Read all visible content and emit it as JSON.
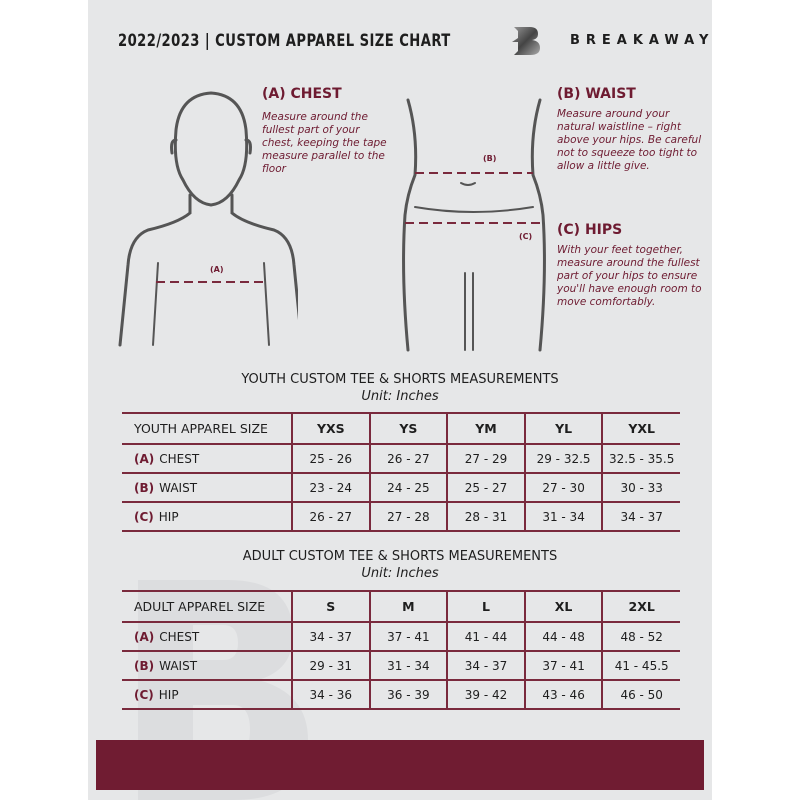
{
  "header": {
    "title": "2022/2023  |  CUSTOM APPAREL SIZE CHART",
    "brand": "BREAKAWAY"
  },
  "measures": [
    {
      "heading": "(A) CHEST",
      "marker": "(A)",
      "text": "Measure around the fullest part of your chest, keeping the tape measure parallel to the floor"
    },
    {
      "heading": "(B) WAIST",
      "marker": "(B)",
      "text": "Measure around your natural waistline – right above your hips. Be careful not to squeeze too tight to allow a little give."
    },
    {
      "heading": "(C) HIPS",
      "marker": "(C)",
      "text": "With your feet together, measure around the fullest part of your hips to ensure you'll have enough room to move comfortably."
    }
  ],
  "youth": {
    "title": "YOUTH CUSTOM TEE & SHORTS MEASUREMENTS",
    "unit": "Unit: Inches",
    "size_label": "YOUTH APPAREL SIZE",
    "sizes": [
      "YXS",
      "YS",
      "YM",
      "YL",
      "YXL"
    ],
    "rows": [
      {
        "code": "(A)",
        "name": "CHEST",
        "values": [
          "25 - 26",
          "26 - 27",
          "27 - 29",
          "29 - 32.5",
          "32.5 - 35.5"
        ]
      },
      {
        "code": "(B)",
        "name": "WAIST",
        "values": [
          "23 - 24",
          "24 - 25",
          "25 - 27",
          "27 - 30",
          "30 - 33"
        ]
      },
      {
        "code": "(C)",
        "name": "HIP",
        "values": [
          "26 - 27",
          "27 - 28",
          "28 - 31",
          "31 - 34",
          "34 - 37"
        ]
      }
    ]
  },
  "adult": {
    "title": "ADULT CUSTOM TEE & SHORTS MEASUREMENTS",
    "unit": "Unit: Inches",
    "size_label": "ADULT APPAREL SIZE",
    "sizes": [
      "S",
      "M",
      "L",
      "XL",
      "2XL"
    ],
    "rows": [
      {
        "code": "(A)",
        "name": "CHEST",
        "values": [
          "34 - 37",
          "37 - 41",
          "41 - 44",
          "44 - 48",
          "48 - 52"
        ]
      },
      {
        "code": "(B)",
        "name": "WAIST",
        "values": [
          "29 - 31",
          "31 - 34",
          "34 - 37",
          "37 - 41",
          "41 - 45.5"
        ]
      },
      {
        "code": "(C)",
        "name": "HIP",
        "values": [
          "34 - 36",
          "36 - 39",
          "39 - 42",
          "43 - 46",
          "46 - 50"
        ]
      }
    ]
  },
  "colors": {
    "accent": "#6e1b31",
    "background": "#e6e7e8",
    "text": "#1e1e1e"
  }
}
